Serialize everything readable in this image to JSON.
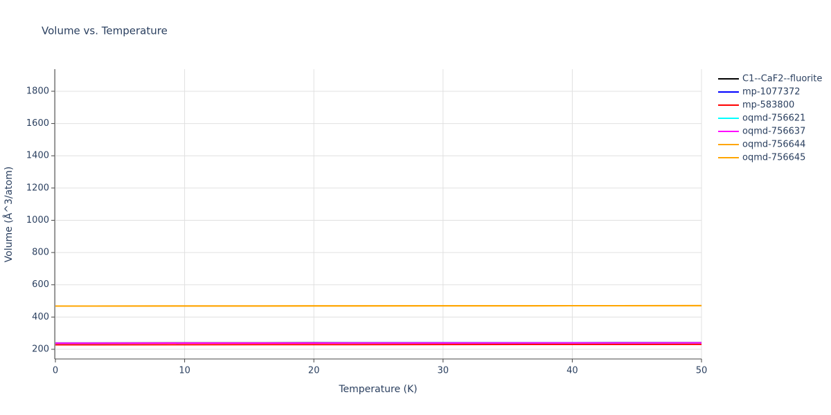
{
  "chart_data": {
    "type": "line",
    "title": "Volume vs. Temperature",
    "x_label": "Temperature (K)",
    "y_label": "Volume (Å^3/atom)",
    "x": [
      0,
      10,
      20,
      30,
      40,
      50
    ],
    "series": [
      {
        "name": "C1--CaF2--fluorite",
        "color": "#000000",
        "values": [
          239,
          239.5,
          240,
          240.5,
          241,
          241.5
        ]
      },
      {
        "name": "mp-1077372",
        "color": "#0000ff",
        "values": [
          238,
          238.5,
          239,
          239.5,
          240,
          240.5
        ]
      },
      {
        "name": "mp-583800",
        "color": "#ff0000",
        "values": [
          228,
          228.5,
          229,
          229.5,
          230,
          230.5
        ]
      },
      {
        "name": "oqmd-756621",
        "color": "#00ffff",
        "values": [
          238,
          238.4,
          238.8,
          239.2,
          239.6,
          240
        ]
      },
      {
        "name": "oqmd-756637",
        "color": "#ff00ff",
        "values": [
          238,
          238.4,
          238.8,
          239.2,
          239.6,
          240
        ]
      },
      {
        "name": "oqmd-756644",
        "color": "#ffa500",
        "values": [
          468,
          468.5,
          469,
          469.5,
          470,
          471
        ]
      },
      {
        "name": "oqmd-756645",
        "color": "#ffa500",
        "values": [
          468,
          468.5,
          469,
          469.5,
          470,
          471
        ]
      }
    ],
    "xlim": [
      0,
      50
    ],
    "xticks": [
      0,
      10,
      20,
      30,
      40,
      50
    ],
    "ylim": [
      140,
      1937
    ],
    "yticks": [
      200,
      400,
      600,
      800,
      1000,
      1200,
      1400,
      1600,
      1800
    ],
    "grid": true
  }
}
